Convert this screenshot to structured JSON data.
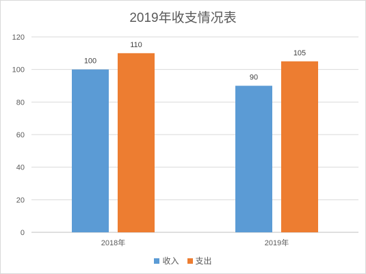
{
  "chart_data": {
    "type": "bar",
    "title": "2019年收支情况表",
    "categories": [
      "2018年",
      "2019年"
    ],
    "series": [
      {
        "name": "收入",
        "values": [
          100,
          90
        ],
        "color": "#5b9bd5"
      },
      {
        "name": "支出",
        "values": [
          110,
          105
        ],
        "color": "#ed7d31"
      }
    ],
    "ylim": [
      0,
      120
    ],
    "yticks": [
      0,
      20,
      40,
      60,
      80,
      100,
      120
    ],
    "grid": true,
    "legend_position": "bottom"
  }
}
